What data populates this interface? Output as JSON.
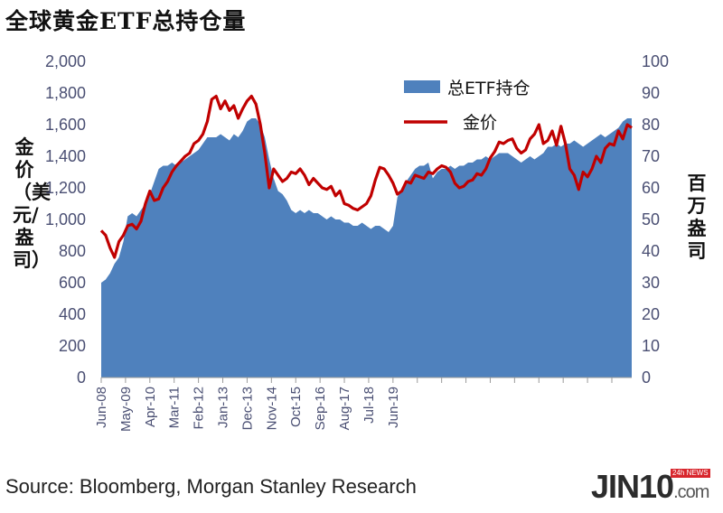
{
  "title": "全球黄金ETF总持仓量",
  "source": "Source: Bloomberg, Morgan Stanley Research",
  "watermark": {
    "brand": "JIN10",
    "domain": ".com",
    "tag": "24h NEWS"
  },
  "chart_data": {
    "type": "area",
    "left_axis": {
      "title": "金价（美元/盎司）",
      "ylim": [
        0,
        2000
      ],
      "ticks": [
        "0",
        "200",
        "400",
        "600",
        "800",
        "1,000",
        "1,200",
        "1,400",
        "1,600",
        "1,800",
        "2,000"
      ]
    },
    "right_axis": {
      "title": "百万盎司",
      "ylim": [
        0,
        100
      ],
      "ticks": [
        "0",
        "10",
        "20",
        "30",
        "40",
        "50",
        "60",
        "70",
        "80",
        "90",
        "100"
      ]
    },
    "x_tick_labels": [
      "Jun-08",
      "May-09",
      "Apr-10",
      "Mar-11",
      "Feb-12",
      "Jan-13",
      "Dec-13",
      "Nov-14",
      "Oct-15",
      "Sep-16",
      "Aug-17",
      "Jul-18",
      "Jun-19"
    ],
    "legend_position": "top-right",
    "colors": {
      "area": "#4f81bd",
      "line": "#c00000",
      "axis_text": "#4a4f73"
    },
    "series": [
      {
        "name": "总ETF持仓",
        "axis": "right",
        "type": "area",
        "x": [
          0,
          2,
          4,
          6,
          8,
          10,
          12,
          14,
          16,
          18,
          20,
          22,
          24,
          26,
          28,
          30,
          32,
          34,
          36,
          38,
          40,
          42,
          44,
          46,
          48,
          50,
          52,
          54,
          56,
          58,
          60,
          62,
          64,
          66,
          68,
          70,
          72,
          74,
          76,
          78,
          80,
          82,
          84,
          86,
          88,
          90,
          92,
          94,
          96,
          98,
          100,
          102,
          104,
          106,
          108,
          110,
          112,
          114,
          116,
          118,
          120,
          122,
          124,
          126,
          128,
          130,
          132,
          134,
          136,
          138,
          140,
          142,
          144,
          146,
          148,
          150,
          152,
          154,
          156,
          158,
          160,
          162,
          164,
          166,
          168,
          170,
          172,
          174,
          176,
          178,
          180,
          182,
          184,
          186,
          188,
          190,
          192,
          194,
          196,
          198,
          200,
          202,
          204,
          206,
          208,
          210,
          212,
          214,
          216,
          218,
          220,
          222,
          224,
          226,
          228,
          230,
          232,
          234,
          236,
          238,
          240
        ],
        "values": [
          30,
          31,
          33,
          36,
          38,
          43,
          51,
          52,
          51,
          53,
          55,
          58,
          62,
          66,
          67,
          67,
          68,
          67,
          68,
          69,
          70,
          71,
          72,
          74,
          76,
          76,
          76,
          77,
          76,
          75,
          77,
          76,
          78,
          81,
          82,
          82,
          80,
          76,
          69,
          63,
          59,
          58,
          56,
          53,
          52,
          53,
          52,
          53,
          52,
          52,
          51,
          50,
          51,
          50,
          50,
          49,
          49,
          48,
          48,
          49,
          48,
          47,
          48,
          48,
          47,
          46,
          48,
          57,
          60,
          62,
          64,
          66,
          67,
          67,
          68,
          63,
          65,
          66,
          66,
          67,
          66,
          67,
          67,
          68,
          68,
          69,
          69,
          70,
          69,
          70,
          71,
          71,
          71,
          70,
          69,
          68,
          69,
          70,
          69,
          70,
          71,
          73,
          73,
          74,
          73,
          74,
          74,
          75,
          74,
          73,
          74,
          75,
          76,
          77,
          76,
          77,
          78,
          79,
          81,
          82,
          82
        ],
        "x_note": "months since Jun-08"
      },
      {
        "name": "金价",
        "axis": "left",
        "type": "line",
        "x": [
          0,
          2,
          4,
          6,
          8,
          10,
          12,
          14,
          16,
          18,
          20,
          22,
          24,
          26,
          28,
          30,
          32,
          34,
          36,
          38,
          40,
          42,
          44,
          46,
          48,
          50,
          52,
          54,
          56,
          58,
          60,
          62,
          64,
          66,
          68,
          70,
          72,
          74,
          76,
          78,
          80,
          82,
          84,
          86,
          88,
          90,
          92,
          94,
          96,
          98,
          100,
          102,
          104,
          106,
          108,
          110,
          112,
          114,
          116,
          118,
          120,
          122,
          124,
          126,
          128,
          130,
          132,
          134,
          136,
          138,
          140,
          142,
          144,
          146,
          148,
          150,
          152,
          154,
          156,
          158,
          160,
          162,
          164,
          166,
          168,
          170,
          172,
          174,
          176,
          178,
          180,
          182,
          184,
          186,
          188,
          190,
          192,
          194,
          196,
          198,
          200,
          202,
          204,
          206,
          208,
          210,
          212,
          214,
          216,
          218,
          220,
          222,
          224,
          226,
          228,
          230,
          232,
          234,
          236,
          238,
          240
        ],
        "values": [
          930,
          900,
          820,
          760,
          860,
          900,
          960,
          970,
          940,
          990,
          1100,
          1180,
          1120,
          1130,
          1200,
          1240,
          1300,
          1340,
          1370,
          1400,
          1420,
          1480,
          1500,
          1540,
          1620,
          1760,
          1780,
          1700,
          1750,
          1690,
          1720,
          1640,
          1700,
          1750,
          1780,
          1730,
          1600,
          1420,
          1200,
          1320,
          1280,
          1240,
          1260,
          1300,
          1290,
          1320,
          1280,
          1220,
          1260,
          1230,
          1200,
          1190,
          1210,
          1150,
          1180,
          1100,
          1090,
          1070,
          1060,
          1080,
          1100,
          1150,
          1250,
          1330,
          1320,
          1280,
          1230,
          1160,
          1180,
          1240,
          1230,
          1280,
          1270,
          1260,
          1300,
          1290,
          1320,
          1340,
          1330,
          1300,
          1230,
          1200,
          1210,
          1240,
          1250,
          1290,
          1280,
          1320,
          1390,
          1430,
          1490,
          1480,
          1500,
          1510,
          1450,
          1420,
          1440,
          1510,
          1540,
          1600,
          1480,
          1500,
          1560,
          1470,
          1590,
          1480,
          1320,
          1280,
          1190,
          1300,
          1270,
          1320,
          1400,
          1360,
          1450,
          1480,
          1470,
          1560,
          1510,
          1600,
          1580
        ]
      }
    ]
  }
}
